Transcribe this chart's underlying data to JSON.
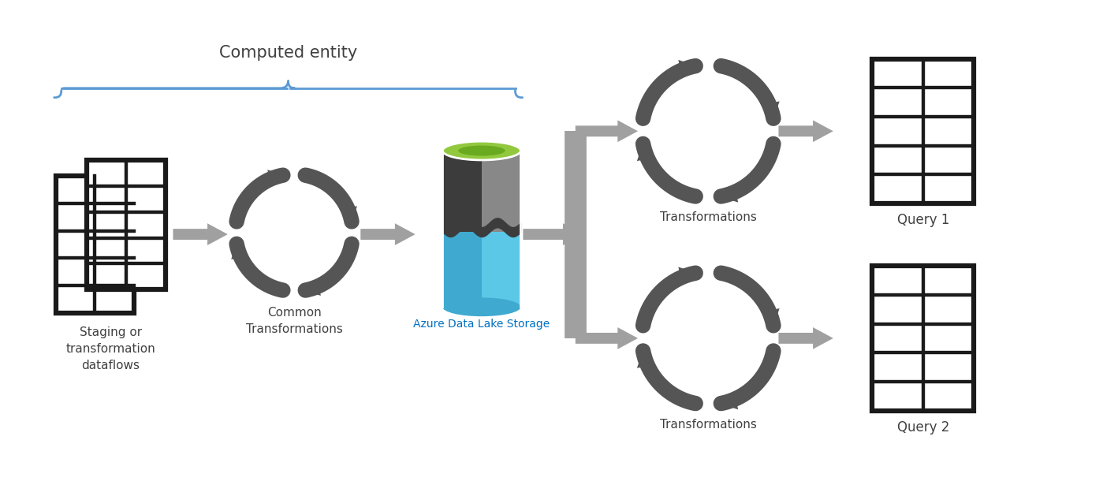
{
  "bg_color": "#ffffff",
  "figsize": [
    14.18,
    6.15
  ],
  "dpi": 100,
  "elements": {
    "staging_label": "Staging or\ntransformation\ndataflows",
    "common_label": "Common\nTransformations",
    "azure_label": "Azure Data Lake Storage",
    "transformations1_label": "Transformations",
    "transformations2_label": "Transformations",
    "query1_label": "Query 1",
    "query2_label": "Query 2",
    "computed_entity_label": "Computed entity"
  },
  "colors": {
    "icon_black": "#1a1a1a",
    "cycle_gray": "#555555",
    "arrow_gray": "#a0a0a0",
    "blue_label": "#0070c0",
    "brace_blue": "#5b9bd5",
    "cyl_dark": "#3c3c3c",
    "cyl_mid": "#888888",
    "cyl_blue": "#3fa9d0",
    "cyl_blue_light": "#5bc8e8",
    "cyl_green": "#92c83e",
    "cyl_green_dark": "#6aaa20",
    "label_dark": "#404040"
  }
}
